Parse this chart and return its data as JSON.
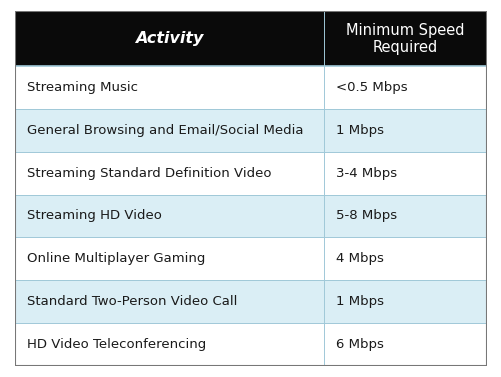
{
  "header": [
    "Activity",
    "Minimum Speed\nRequired"
  ],
  "rows": [
    [
      "Streaming Music",
      "<0.5 Mbps"
    ],
    [
      "General Browsing and Email/Social Media",
      "1 Mbps"
    ],
    [
      "Streaming Standard Definition Video",
      "3-4 Mbps"
    ],
    [
      "Streaming HD Video",
      "5-8 Mbps"
    ],
    [
      "Online Multiplayer Gaming",
      "4 Mbps"
    ],
    [
      "Standard Two-Person Video Call",
      "1 Mbps"
    ],
    [
      "HD Video Teleconferencing",
      "6 Mbps"
    ]
  ],
  "header_bg": "#0a0a0a",
  "header_col2_bg": "#1a1a2e",
  "header_text_color": "#ffffff",
  "row_bg_even": "#ffffff",
  "row_bg_odd": "#daeef5",
  "border_color": "#a0c8d8",
  "text_color": "#1a1a1a",
  "col_split": 0.655,
  "figsize": [
    5.02,
    3.77
  ],
  "dpi": 100,
  "header_fontsize": 11.5,
  "row_fontsize": 9.5,
  "outer_border_color": "#777777"
}
